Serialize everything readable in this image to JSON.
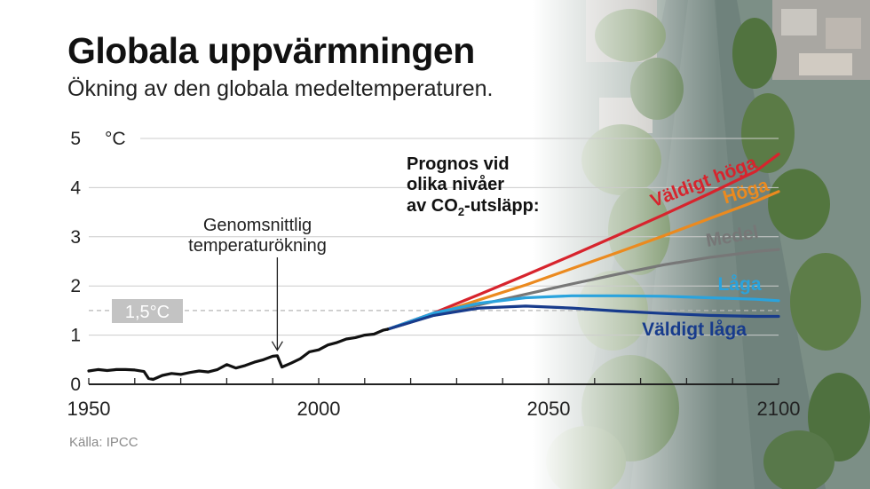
{
  "title": "Globala uppvärmningen",
  "subtitle": "Ökning av den globala medeltemperaturen.",
  "source": "Källa: IPCC",
  "chart_data": {
    "type": "line",
    "ylabel": "°C",
    "ylim": [
      0,
      5
    ],
    "xlim": [
      1950,
      2100
    ],
    "y_ticks": [
      "0",
      "1",
      "2",
      "3",
      "4",
      "5"
    ],
    "x_ticks": [
      "1950",
      "2000",
      "2050",
      "2100"
    ],
    "grid": true,
    "threshold": {
      "value": 1.5,
      "label": "1,5°C"
    },
    "annotation": {
      "line1": "Genomsnittlig",
      "line2": "temperaturökning",
      "x": 1991,
      "y": 0.62
    },
    "forecast_title": [
      "Prognos vid",
      "olika nivåer",
      "av CO",
      "2",
      "-utsläpp:"
    ],
    "observed": {
      "x": [
        1950,
        1952,
        1954,
        1956,
        1958,
        1960,
        1962,
        1963,
        1964,
        1966,
        1968,
        1970,
        1972,
        1974,
        1976,
        1978,
        1980,
        1982,
        1984,
        1986,
        1988,
        1990,
        1991,
        1992,
        1994,
        1996,
        1998,
        2000,
        2002,
        2004,
        2006,
        2008,
        2010,
        2012,
        2014,
        2015
      ],
      "y": [
        0.27,
        0.3,
        0.28,
        0.3,
        0.3,
        0.29,
        0.26,
        0.12,
        0.1,
        0.18,
        0.22,
        0.2,
        0.24,
        0.27,
        0.25,
        0.3,
        0.4,
        0.33,
        0.38,
        0.45,
        0.5,
        0.57,
        0.58,
        0.35,
        0.43,
        0.52,
        0.66,
        0.7,
        0.8,
        0.85,
        0.92,
        0.95,
        1.0,
        1.02,
        1.1,
        1.12
      ]
    },
    "series": [
      {
        "name": "Väldigt höga",
        "color": "#d7242d",
        "x": [
          2015,
          2025,
          2035,
          2045,
          2055,
          2065,
          2075,
          2085,
          2095,
          2100
        ],
        "y": [
          1.12,
          1.45,
          1.83,
          2.22,
          2.62,
          3.03,
          3.45,
          3.88,
          4.33,
          4.68
        ]
      },
      {
        "name": "Höga",
        "color": "#eb8a1f",
        "x": [
          2015,
          2025,
          2035,
          2045,
          2055,
          2065,
          2075,
          2085,
          2095,
          2100
        ],
        "y": [
          1.12,
          1.42,
          1.72,
          2.02,
          2.35,
          2.68,
          3.02,
          3.37,
          3.72,
          3.92
        ]
      },
      {
        "name": "Medel",
        "color": "#777777",
        "x": [
          2015,
          2025,
          2035,
          2045,
          2055,
          2065,
          2075,
          2085,
          2095,
          2100
        ],
        "y": [
          1.12,
          1.4,
          1.62,
          1.83,
          2.04,
          2.24,
          2.43,
          2.58,
          2.7,
          2.74
        ]
      },
      {
        "name": "Låga",
        "color": "#2aa3dd",
        "x": [
          2015,
          2025,
          2035,
          2045,
          2055,
          2065,
          2075,
          2085,
          2095,
          2100
        ],
        "y": [
          1.12,
          1.45,
          1.65,
          1.76,
          1.8,
          1.8,
          1.79,
          1.76,
          1.73,
          1.7
        ]
      },
      {
        "name": "Väldigt låga",
        "color": "#173b8c",
        "x": [
          2015,
          2025,
          2035,
          2045,
          2055,
          2065,
          2075,
          2085,
          2095,
          2100
        ],
        "y": [
          1.12,
          1.4,
          1.55,
          1.59,
          1.55,
          1.49,
          1.44,
          1.4,
          1.38,
          1.38
        ]
      }
    ]
  }
}
